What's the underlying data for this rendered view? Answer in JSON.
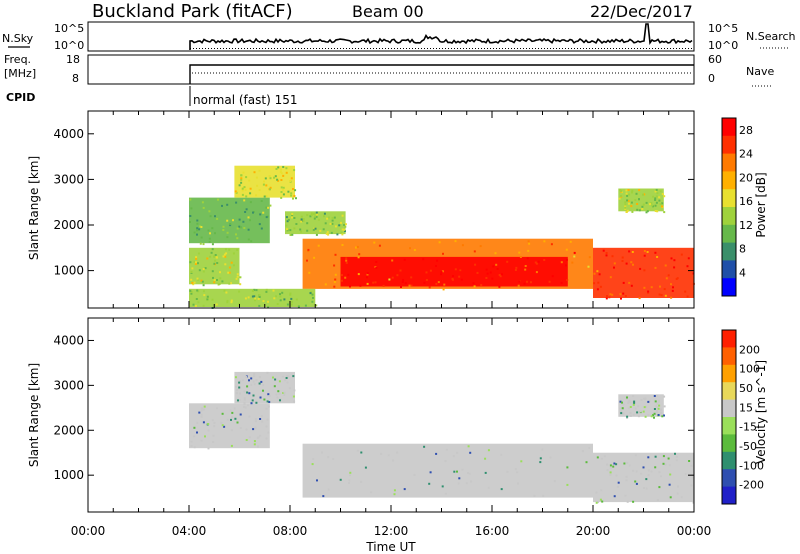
{
  "header": {
    "title": "Buckland Park (fitACF)",
    "beam": "Beam 00",
    "date": "22/Dec/2017"
  },
  "panels": {
    "nsky": {
      "label": "N.Sky",
      "right_label": "N.Search",
      "left_ticks": [
        "10^5",
        "10^0"
      ],
      "right_ticks": [
        "10^5",
        "10^0"
      ]
    },
    "freq": {
      "label_line1": "Freq.",
      "label_line2": "[MHz]",
      "right_label": "Nave",
      "left_ticks": [
        "18",
        "8"
      ],
      "right_ticks": [
        "60",
        "0"
      ]
    },
    "cpid": {
      "label": "CPID",
      "mode": "normal (fast) 151"
    }
  },
  "colors": {
    "power": [
      "#0000ff",
      "#1f4fa8",
      "#3a8f6a",
      "#66b84a",
      "#9fd23c",
      "#e8e030",
      "#ffb000",
      "#ff7a00",
      "#ff3000",
      "#ff0000"
    ],
    "velocity": [
      "#2020c8",
      "#2f4fb0",
      "#2f8f6f",
      "#5bbb3c",
      "#9adf5a",
      "#c8c8c8",
      "#e8d85a",
      "#ffa000",
      "#ff6000",
      "#ff2000"
    ]
  },
  "chart_data": [
    {
      "type": "heatmap",
      "title": "",
      "xlabel": "Time UT",
      "ylabel": "Slant Range [km]",
      "xlim": [
        "00:00",
        "24:00"
      ],
      "ylim": [
        180,
        4500
      ],
      "x_ticks": [
        "00:00",
        "04:00",
        "08:00",
        "12:00",
        "16:00",
        "20:00",
        "00:00"
      ],
      "y_ticks": [
        1000,
        2000,
        3000,
        4000
      ],
      "colorbar": {
        "label": "Power [dB]",
        "ticks": [
          4,
          8,
          12,
          16,
          20,
          24,
          28
        ],
        "range": [
          0,
          30
        ]
      },
      "regions": [
        {
          "t0": 4.0,
          "t1": 7.2,
          "r0": 1600,
          "r1": 2600,
          "level": 11
        },
        {
          "t0": 5.8,
          "t1": 8.2,
          "r0": 2600,
          "r1": 3300,
          "level": 15
        },
        {
          "t0": 7.8,
          "t1": 10.2,
          "r0": 1800,
          "r1": 2300,
          "level": 12
        },
        {
          "t0": 8.5,
          "t1": 20.0,
          "r0": 600,
          "r1": 1700,
          "level": 22
        },
        {
          "t0": 10.0,
          "t1": 19.0,
          "r0": 650,
          "r1": 1300,
          "level": 28
        },
        {
          "t0": 4.0,
          "t1": 6.0,
          "r0": 700,
          "r1": 1500,
          "level": 14
        },
        {
          "t0": 20.0,
          "t1": 24.0,
          "r0": 400,
          "r1": 1500,
          "level": 24
        },
        {
          "t0": 21.0,
          "t1": 22.8,
          "r0": 2300,
          "r1": 2800,
          "level": 14
        },
        {
          "t0": 4.0,
          "t1": 9.0,
          "r0": 200,
          "r1": 600,
          "level": 12
        }
      ]
    },
    {
      "type": "heatmap",
      "title": "",
      "xlabel": "Time UT",
      "ylabel": "Slant Range [km]",
      "xlim": [
        "00:00",
        "24:00"
      ],
      "ylim": [
        180,
        4500
      ],
      "x_ticks": [
        "00:00",
        "04:00",
        "08:00",
        "12:00",
        "16:00",
        "20:00",
        "00:00"
      ],
      "y_ticks": [
        1000,
        2000,
        3000,
        4000
      ],
      "colorbar": {
        "label": "Velocity [m s^-1]",
        "ticks": [
          200,
          100,
          50,
          15,
          -15,
          -50,
          -100,
          -200
        ]
      },
      "regions": [
        {
          "t0": 4.0,
          "t1": 7.2,
          "r0": 1600,
          "r1": 2600,
          "level": 0
        },
        {
          "t0": 5.8,
          "t1": 8.2,
          "r0": 2600,
          "r1": 3300,
          "level": 0
        },
        {
          "t0": 8.5,
          "t1": 20.0,
          "r0": 500,
          "r1": 1700,
          "level": 0
        },
        {
          "t0": 20.0,
          "t1": 24.0,
          "r0": 400,
          "r1": 1500,
          "level": 0
        },
        {
          "t0": 21.0,
          "t1": 22.8,
          "r0": 2300,
          "r1": 2800,
          "level": 0
        }
      ]
    }
  ]
}
